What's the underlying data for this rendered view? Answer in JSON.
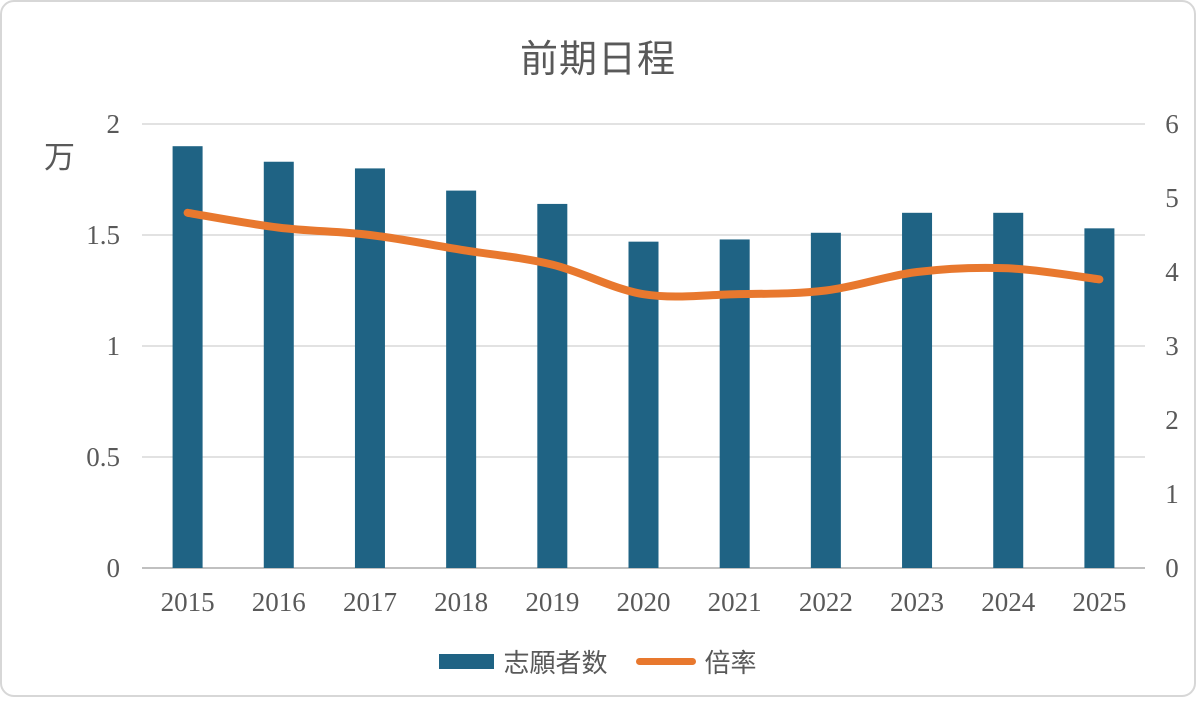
{
  "chart_data": {
    "type": "combo",
    "title": "前期日程",
    "categories": [
      "2015",
      "2016",
      "2017",
      "2018",
      "2019",
      "2020",
      "2021",
      "2022",
      "2023",
      "2024",
      "2025"
    ],
    "series": [
      {
        "name": "志願者数",
        "type": "bar",
        "axis": "left",
        "color": "#1F6384",
        "values": [
          1.9,
          1.83,
          1.8,
          1.7,
          1.64,
          1.47,
          1.48,
          1.51,
          1.6,
          1.6,
          1.53
        ]
      },
      {
        "name": "倍率",
        "type": "line",
        "axis": "right",
        "color": "#E8782E",
        "values": [
          4.8,
          4.6,
          4.5,
          4.3,
          4.1,
          3.7,
          3.7,
          3.75,
          4.0,
          4.05,
          3.9
        ]
      }
    ],
    "left_axis": {
      "unit": "万",
      "min": 0,
      "max": 2,
      "ticks": [
        "2",
        "1.5",
        "1",
        "0.5",
        "0"
      ],
      "tick_values": [
        2,
        1.5,
        1,
        0.5,
        0
      ]
    },
    "right_axis": {
      "min": 0,
      "max": 6,
      "ticks": [
        "6",
        "5",
        "4",
        "3",
        "2",
        "1",
        "0"
      ],
      "tick_values": [
        6,
        5,
        4,
        3,
        2,
        1,
        0
      ]
    },
    "grid": true,
    "legend_position": "bottom"
  },
  "colors": {
    "bar": "#1F6384",
    "line": "#E8782E",
    "text": "#595959",
    "grid": "#D9D9D9",
    "axis_line": "#C0C0C0",
    "background": "#FFFFFF",
    "frame_border": "#D7D7D7"
  }
}
